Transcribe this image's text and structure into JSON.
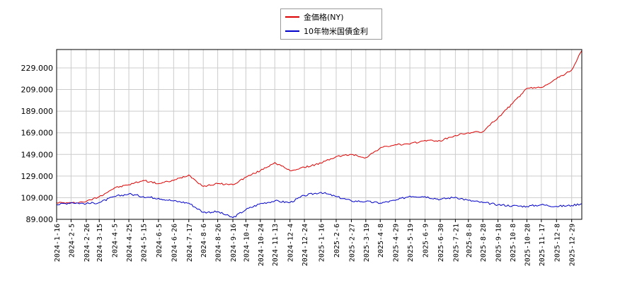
{
  "chart_data": {
    "type": "line",
    "title": "",
    "xlabel": "",
    "ylabel": "",
    "ylim": [
      89000,
      246000
    ],
    "yticks": [
      "89.000",
      "109.000",
      "129.000",
      "149.000",
      "169.000",
      "189.000",
      "209.000",
      "229.000"
    ],
    "ytick_values": [
      89000,
      109000,
      129000,
      149000,
      169000,
      189000,
      209000,
      229000
    ],
    "xticks": [
      "2024-1-16",
      "2024-2-5",
      "2024-2-26",
      "2024-3-15",
      "2024-4-5",
      "2024-4-25",
      "2024-5-15",
      "2024-6-5",
      "2024-6-26",
      "2024-7-17",
      "2024-8-6",
      "2024-8-26",
      "2024-9-16",
      "2024-10-4",
      "2024-10-24",
      "2024-11-13",
      "2024-12-4",
      "2024-12-24",
      "2025-1-16",
      "2025-2-6",
      "2025-2-27",
      "2025-3-19",
      "2025-4-8",
      "2025-4-29",
      "2025-5-19",
      "2025-6-9",
      "2025-6-30",
      "2025-7-21",
      "2025-8-8",
      "2025-8-28",
      "2025-9-18",
      "2025-10-8",
      "2025-10-28",
      "2025-11-17",
      "2025-12-8",
      "2025-12-29"
    ],
    "grid": true,
    "legend_position": "top-center",
    "series": [
      {
        "name": "金価格(NY)",
        "color": "#dd0000",
        "points": [
          [
            "2024-1-16",
            104500
          ],
          [
            "2024-2-5",
            104000
          ],
          [
            "2024-2-26",
            105500
          ],
          [
            "2024-3-15",
            110000
          ],
          [
            "2024-4-5",
            118000
          ],
          [
            "2024-4-25",
            121000
          ],
          [
            "2024-5-15",
            125000
          ],
          [
            "2024-6-5",
            122000
          ],
          [
            "2024-6-26",
            125000
          ],
          [
            "2024-7-17",
            130000
          ],
          [
            "2024-8-6",
            119500
          ],
          [
            "2024-8-26",
            122000
          ],
          [
            "2024-9-16",
            121000
          ],
          [
            "2024-10-4",
            128000
          ],
          [
            "2024-10-24",
            134000
          ],
          [
            "2024-11-13",
            141500
          ],
          [
            "2024-12-4",
            134000
          ],
          [
            "2024-12-24",
            137000
          ],
          [
            "2025-1-16",
            141000
          ],
          [
            "2025-2-6",
            147000
          ],
          [
            "2025-2-27",
            149000
          ],
          [
            "2025-3-19",
            146000
          ],
          [
            "2025-4-8",
            155000
          ],
          [
            "2025-4-29",
            158000
          ],
          [
            "2025-5-19",
            158500
          ],
          [
            "2025-6-9",
            162000
          ],
          [
            "2025-6-30",
            161500
          ],
          [
            "2025-7-21",
            166500
          ],
          [
            "2025-8-8",
            169000
          ],
          [
            "2025-8-28",
            170000
          ],
          [
            "2025-9-18",
            183000
          ],
          [
            "2025-10-8",
            196000
          ],
          [
            "2025-10-28",
            210000
          ],
          [
            "2025-11-17",
            211000
          ],
          [
            "2025-12-8",
            219000
          ],
          [
            "2025-12-29",
            227000
          ],
          [
            "2026-1-12",
            245000
          ]
        ]
      },
      {
        "name": "10年物米国債金利",
        "color": "#0000cc",
        "points": [
          [
            "2024-1-16",
            102500
          ],
          [
            "2024-2-5",
            104500
          ],
          [
            "2024-2-26",
            103500
          ],
          [
            "2024-3-15",
            104500
          ],
          [
            "2024-4-5",
            110000
          ],
          [
            "2024-4-25",
            112500
          ],
          [
            "2024-5-15",
            110000
          ],
          [
            "2024-6-5",
            108500
          ],
          [
            "2024-6-26",
            106000
          ],
          [
            "2024-7-17",
            104000
          ],
          [
            "2024-8-6",
            95500
          ],
          [
            "2024-8-26",
            96000
          ],
          [
            "2024-9-16",
            90500
          ],
          [
            "2024-10-4",
            98000
          ],
          [
            "2024-10-24",
            103500
          ],
          [
            "2024-11-13",
            106000
          ],
          [
            "2024-12-4",
            104500
          ],
          [
            "2024-12-24",
            111000
          ],
          [
            "2025-1-16",
            114000
          ],
          [
            "2025-2-6",
            110000
          ],
          [
            "2025-2-27",
            106000
          ],
          [
            "2025-3-19",
            105500
          ],
          [
            "2025-4-8",
            104000
          ],
          [
            "2025-4-29",
            106500
          ],
          [
            "2025-5-19",
            110500
          ],
          [
            "2025-6-9",
            110000
          ],
          [
            "2025-6-30",
            107500
          ],
          [
            "2025-7-21",
            109500
          ],
          [
            "2025-8-8",
            106500
          ],
          [
            "2025-8-28",
            104500
          ],
          [
            "2025-9-18",
            102500
          ],
          [
            "2025-10-8",
            101500
          ],
          [
            "2025-10-28",
            101000
          ],
          [
            "2025-11-17",
            102500
          ],
          [
            "2025-12-8",
            101000
          ],
          [
            "2025-12-29",
            101800
          ],
          [
            "2026-1-12",
            103500
          ]
        ]
      }
    ]
  }
}
